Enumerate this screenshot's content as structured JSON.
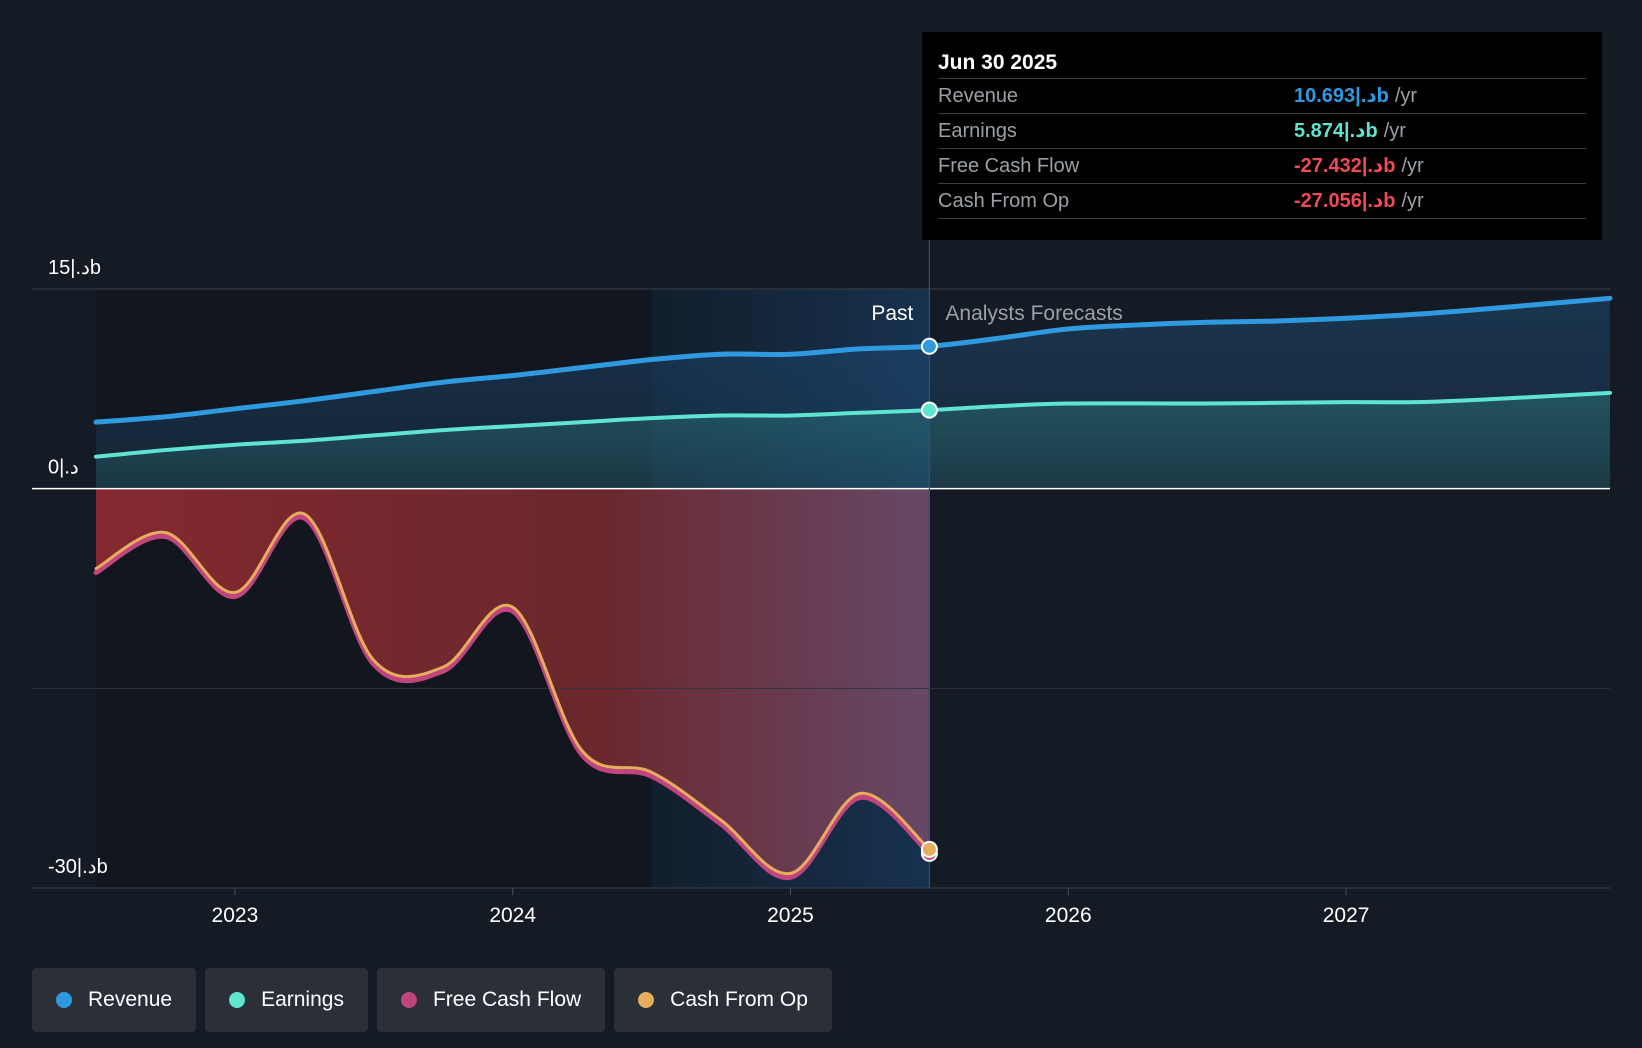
{
  "chart_data": {
    "type": "area",
    "y_axis_labels": [
      "15|.دb",
      "0|.د",
      "-30|.دb"
    ],
    "y_ticks": [
      15,
      0,
      -30
    ],
    "ylim": [
      -30,
      15
    ],
    "x_tick_labels": [
      "2023",
      "2024",
      "2025",
      "2026",
      "2027"
    ],
    "x_ticks": [
      2023.0,
      2024.0,
      2025.0,
      2026.0,
      2027.0
    ],
    "xlim": [
      2022.5,
      2027.95
    ],
    "past_label": "Past",
    "forecast_label": "Analysts Forecasts",
    "divider_x": 2025.5,
    "highlight_start_x": 2024.5,
    "series": [
      {
        "name": "Revenue",
        "color": "#2f9ae0",
        "points": [
          [
            2022.5,
            5.0
          ],
          [
            2022.75,
            5.4
          ],
          [
            2023.0,
            6.0
          ],
          [
            2023.25,
            6.6
          ],
          [
            2023.5,
            7.3
          ],
          [
            2023.75,
            8.0
          ],
          [
            2024.0,
            8.5
          ],
          [
            2024.25,
            9.1
          ],
          [
            2024.5,
            9.7
          ],
          [
            2024.75,
            10.1
          ],
          [
            2025.0,
            10.1
          ],
          [
            2025.25,
            10.5
          ],
          [
            2025.5,
            10.7
          ],
          [
            2025.75,
            11.3
          ],
          [
            2026.0,
            12.0
          ],
          [
            2026.25,
            12.3
          ],
          [
            2026.5,
            12.5
          ],
          [
            2026.75,
            12.6
          ],
          [
            2027.0,
            12.8
          ],
          [
            2027.25,
            13.1
          ],
          [
            2027.5,
            13.5
          ],
          [
            2027.95,
            14.3
          ]
        ]
      },
      {
        "name": "Earnings",
        "color": "#5ee4d0",
        "points": [
          [
            2022.5,
            2.4
          ],
          [
            2022.75,
            2.9
          ],
          [
            2023.0,
            3.3
          ],
          [
            2023.25,
            3.6
          ],
          [
            2023.5,
            4.0
          ],
          [
            2023.75,
            4.4
          ],
          [
            2024.0,
            4.7
          ],
          [
            2024.25,
            5.0
          ],
          [
            2024.5,
            5.3
          ],
          [
            2024.75,
            5.5
          ],
          [
            2025.0,
            5.5
          ],
          [
            2025.25,
            5.7
          ],
          [
            2025.5,
            5.9
          ],
          [
            2025.75,
            6.2
          ],
          [
            2026.0,
            6.4
          ],
          [
            2026.5,
            6.4
          ],
          [
            2027.0,
            6.5
          ],
          [
            2027.25,
            6.5
          ],
          [
            2027.5,
            6.7
          ],
          [
            2027.95,
            7.2
          ]
        ]
      },
      {
        "name": "Free Cash Flow",
        "color": "#c0457f",
        "points": [
          [
            2022.5,
            -6.3
          ],
          [
            2022.75,
            -3.6
          ],
          [
            2023.0,
            -8.1
          ],
          [
            2023.25,
            -2.2
          ],
          [
            2023.5,
            -13.2
          ],
          [
            2023.75,
            -13.7
          ],
          [
            2024.0,
            -9.2
          ],
          [
            2024.25,
            -20.0
          ],
          [
            2024.5,
            -21.6
          ],
          [
            2024.75,
            -25.2
          ],
          [
            2025.0,
            -29.2
          ],
          [
            2025.25,
            -23.2
          ],
          [
            2025.5,
            -27.4
          ]
        ]
      },
      {
        "name": "Cash From Op",
        "color": "#e6ad5c",
        "points": [
          [
            2022.5,
            -6.0
          ],
          [
            2022.75,
            -3.3
          ],
          [
            2023.0,
            -7.8
          ],
          [
            2023.25,
            -1.9
          ],
          [
            2023.5,
            -12.9
          ],
          [
            2023.75,
            -13.4
          ],
          [
            2024.0,
            -8.9
          ],
          [
            2024.25,
            -19.7
          ],
          [
            2024.5,
            -21.3
          ],
          [
            2024.75,
            -24.9
          ],
          [
            2025.0,
            -28.9
          ],
          [
            2025.25,
            -22.9
          ],
          [
            2025.5,
            -27.1
          ]
        ]
      }
    ]
  },
  "tooltip": {
    "date": "Jun 30 2025",
    "rows": [
      {
        "label": "Revenue",
        "value": "10.693|.دb",
        "unit": "/yr",
        "color": "#2f9ae0"
      },
      {
        "label": "Earnings",
        "value": "5.874|.دb",
        "unit": "/yr",
        "color": "#5ee4d0"
      },
      {
        "label": "Free Cash Flow",
        "value": "-27.432|.دb",
        "unit": "/yr",
        "color": "#ef4b56"
      },
      {
        "label": "Cash From Op",
        "value": "-27.056|.دb",
        "unit": "/yr",
        "color": "#ef4b56"
      }
    ]
  },
  "legend": [
    {
      "label": "Revenue",
      "color": "#2f9ae0"
    },
    {
      "label": "Earnings",
      "color": "#5ee4d0"
    },
    {
      "label": "Free Cash Flow",
      "color": "#c0457f"
    },
    {
      "label": "Cash From Op",
      "color": "#e6ad5c"
    }
  ]
}
